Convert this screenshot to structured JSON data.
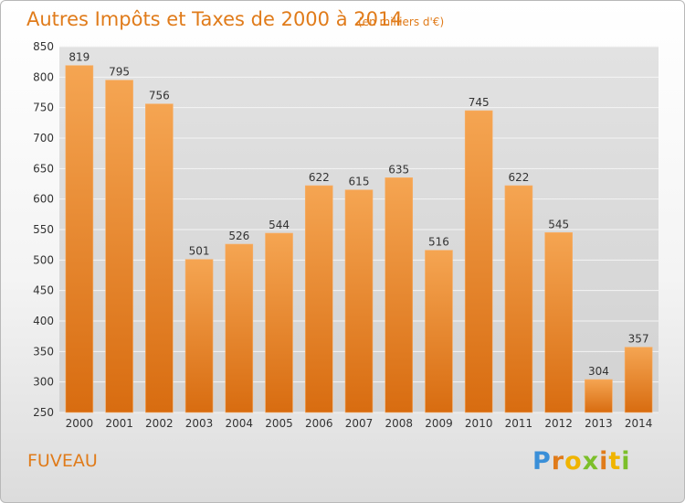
{
  "chart_data": {
    "type": "bar",
    "title": "Autres Impôts et Taxes de 2000 à 2014",
    "subtitle": "(en milliers d'€)",
    "categories": [
      "2000",
      "2001",
      "2002",
      "2003",
      "2004",
      "2005",
      "2006",
      "2007",
      "2008",
      "2009",
      "2010",
      "2011",
      "2012",
      "2013",
      "2014"
    ],
    "values": [
      819,
      795,
      756,
      501,
      526,
      544,
      622,
      615,
      635,
      516,
      745,
      622,
      545,
      304,
      357
    ],
    "ylim": [
      250,
      850
    ],
    "yticks": [
      250,
      300,
      350,
      400,
      450,
      500,
      550,
      600,
      650,
      700,
      750,
      800,
      850
    ],
    "grid": true,
    "bar_color": "#f0922e"
  },
  "footer": {
    "commune": "FUVEAU",
    "brand": "Proxiti"
  }
}
